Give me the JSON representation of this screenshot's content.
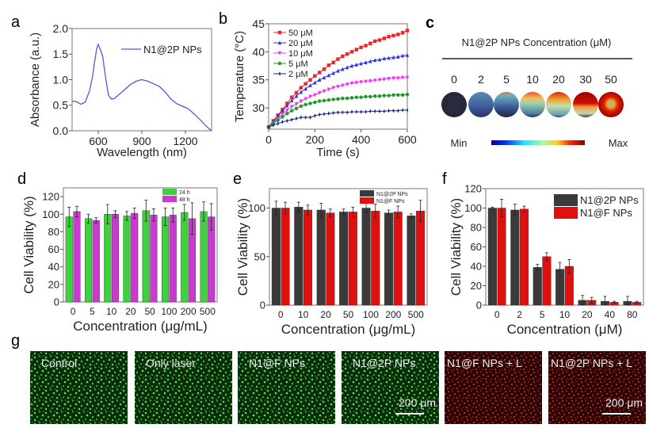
{
  "panel_labels": {
    "a": "a",
    "b": "b",
    "c": "c",
    "d": "d",
    "e": "e",
    "f": "f",
    "g": "g"
  },
  "chart_data": [
    {
      "id": "a",
      "type": "line",
      "title": "",
      "xlabel": "Wavelength (nm)",
      "ylabel": "Absorbance (a.u.)",
      "xlim": [
        420,
        1380
      ],
      "ylim": [
        0,
        2.0
      ],
      "xticks": [
        600,
        900,
        1200
      ],
      "yticks": [
        0.0,
        0.5,
        1.0,
        1.5,
        2.0
      ],
      "ytick_labels": [
        "0.0",
        "0.5",
        "1.0",
        "1.5",
        "2.0"
      ],
      "legend": {
        "position": "top-right",
        "entries": [
          "N1@2P NPs"
        ]
      },
      "series": [
        {
          "name": "N1@2P NPs",
          "color": "#5555dd",
          "x": [
            420,
            450,
            480,
            510,
            540,
            560,
            575,
            590,
            600,
            615,
            630,
            650,
            670,
            690,
            710,
            740,
            780,
            820,
            860,
            900,
            940,
            980,
            1020,
            1060,
            1100,
            1140,
            1180,
            1220,
            1260,
            1300,
            1340,
            1370,
            1380
          ],
          "y": [
            0.58,
            0.57,
            0.52,
            0.56,
            0.78,
            1.05,
            1.35,
            1.62,
            1.69,
            1.58,
            1.46,
            1.05,
            0.7,
            0.62,
            0.63,
            0.7,
            0.8,
            0.9,
            0.97,
            1.0,
            0.97,
            0.92,
            0.87,
            0.76,
            0.62,
            0.53,
            0.48,
            0.43,
            0.33,
            0.22,
            0.1,
            0.02,
            0.01
          ]
        }
      ]
    },
    {
      "id": "b",
      "type": "line",
      "title": "",
      "xlabel": "Time (s)",
      "ylabel": "Temperature (°C)",
      "xlim": [
        0,
        600
      ],
      "ylim": [
        26.2,
        45
      ],
      "xticks": [
        0,
        200,
        400,
        600
      ],
      "yticks": [
        30,
        35,
        40,
        45
      ],
      "legend": {
        "position": "top-left",
        "entries": [
          "50 μM",
          "20 μM",
          "10 μM",
          "5  μM",
          "2  μM"
        ]
      },
      "x": [
        0,
        20,
        40,
        60,
        80,
        100,
        120,
        140,
        160,
        180,
        200,
        220,
        240,
        260,
        280,
        300,
        320,
        340,
        360,
        380,
        400,
        420,
        440,
        460,
        480,
        500,
        520,
        540,
        560,
        580,
        600
      ],
      "series": [
        {
          "name": "50 μM",
          "color": "#e8262b",
          "marker": "square",
          "values": [
            26.6,
            27.7,
            28.7,
            29.7,
            30.8,
            31.9,
            32.7,
            33.6,
            34.3,
            35.0,
            35.7,
            36.3,
            36.9,
            37.6,
            38.1,
            38.7,
            39.2,
            39.6,
            40.0,
            40.4,
            40.8,
            41.1,
            41.5,
            41.9,
            42.1,
            42.4,
            42.7,
            42.9,
            43.1,
            43.4,
            43.8
          ]
        },
        {
          "name": "20 μM",
          "color": "#2a35e0",
          "marker": "triangle",
          "values": [
            26.6,
            27.5,
            28.5,
            29.5,
            30.4,
            31.3,
            32.1,
            32.8,
            33.4,
            34.0,
            34.5,
            35.0,
            35.4,
            35.8,
            36.2,
            36.6,
            36.9,
            37.2,
            37.5,
            37.7,
            37.9,
            38.1,
            38.3,
            38.5,
            38.6,
            38.8,
            38.9,
            39.0,
            39.1,
            39.3,
            39.4
          ]
        },
        {
          "name": "10 μM",
          "color": "#ee33ee",
          "marker": "triangle-down",
          "values": [
            26.6,
            27.3,
            28.1,
            28.9,
            29.6,
            30.2,
            30.7,
            31.2,
            31.6,
            32.0,
            32.3,
            32.7,
            33.0,
            33.3,
            33.6,
            33.8,
            34.0,
            34.2,
            34.4,
            34.5,
            34.6,
            34.7,
            34.8,
            34.9,
            35.0,
            35.1,
            35.2,
            35.3,
            35.3,
            35.4,
            35.4
          ]
        },
        {
          "name": "5  μM",
          "color": "#1a9a2a",
          "marker": "circle",
          "values": [
            26.6,
            27.2,
            27.8,
            28.4,
            29.0,
            29.5,
            29.9,
            30.3,
            30.6,
            30.8,
            31.0,
            31.2,
            31.3,
            31.4,
            31.5,
            31.6,
            31.7,
            31.7,
            31.8,
            31.9,
            31.9,
            32.0,
            32.0,
            32.1,
            32.1,
            32.2,
            32.2,
            32.3,
            32.3,
            32.3,
            32.4
          ]
        },
        {
          "name": "2  μM",
          "color": "#1a2a8a",
          "marker": "star",
          "values": [
            26.6,
            26.9,
            27.2,
            27.5,
            27.7,
            27.9,
            28.1,
            28.3,
            28.3,
            28.3,
            28.6,
            28.8,
            28.9,
            29.0,
            29.1,
            29.2,
            29.2,
            29.2,
            29.3,
            29.3,
            29.3,
            29.3,
            29.4,
            29.4,
            29.4,
            29.4,
            29.5,
            29.5,
            29.5,
            29.6,
            29.6
          ]
        }
      ]
    },
    {
      "id": "d",
      "type": "bar",
      "title": "",
      "xlabel": "Concentration (μg/mL)",
      "ylabel": "Cell Viability (%)",
      "ylim": [
        0,
        130
      ],
      "yticks": [
        0,
        20,
        40,
        60,
        80,
        100,
        120
      ],
      "categories": [
        "0",
        "5",
        "10",
        "20",
        "50",
        "100",
        "200",
        "500"
      ],
      "legend": {
        "position": "top-right"
      },
      "series": [
        {
          "name": "24 h",
          "color": "#3ed03e",
          "values": [
            97,
            95,
            100,
            98,
            104,
            97,
            102,
            103
          ],
          "errors": [
            11,
            5,
            11,
            5,
            12,
            10,
            9,
            11
          ]
        },
        {
          "name": "48 h",
          "color": "#c83ad0",
          "values": [
            103,
            93,
            100,
            101,
            99,
            99,
            95,
            97
          ],
          "errors": [
            6,
            3,
            4,
            6,
            7,
            8,
            18,
            15
          ]
        }
      ]
    },
    {
      "id": "e",
      "type": "bar",
      "title": "",
      "xlabel": "Concentration (μg/mL)",
      "ylabel": "Cell Viability (%)",
      "ylim": [
        0,
        120
      ],
      "yticks": [
        0,
        50,
        100
      ],
      "categories": [
        "0",
        "10",
        "20",
        "50",
        "100",
        "200",
        "500"
      ],
      "legend": {
        "position": "top-right"
      },
      "series": [
        {
          "name": "N1@2P NPs",
          "color": "#3a3a3a",
          "values": [
            100,
            101,
            98,
            96,
            100,
            95,
            92
          ],
          "errors": [
            7,
            5,
            7,
            3,
            5,
            3,
            2
          ]
        },
        {
          "name": "N1@F NPs",
          "color": "#e01010",
          "values": [
            100,
            98,
            95,
            96,
            97,
            96,
            97
          ],
          "errors": [
            6,
            5,
            4,
            5,
            7,
            6,
            11
          ]
        }
      ]
    },
    {
      "id": "f",
      "type": "bar",
      "title": "",
      "xlabel": "Concentration (μM)",
      "ylabel": "Cell Viability (%)",
      "ylim": [
        0,
        120
      ],
      "yticks": [
        0,
        20,
        40,
        60,
        80,
        100,
        120
      ],
      "categories": [
        "0",
        "2",
        "5",
        "10",
        "20",
        "40",
        "80"
      ],
      "legend": {
        "position": "top-right"
      },
      "series": [
        {
          "name": "N1@2P NPs",
          "color": "#3a3a3a",
          "values": [
            100,
            98,
            39,
            37,
            5,
            4,
            4
          ],
          "errors": [
            1,
            6,
            3,
            7,
            5,
            5,
            5
          ]
        },
        {
          "name": "N1@F NPs",
          "color": "#e01010",
          "values": [
            100,
            99,
            50,
            40,
            5,
            3,
            3
          ],
          "errors": [
            9,
            3,
            4,
            7,
            3,
            1,
            1
          ]
        }
      ]
    }
  ],
  "panel_c": {
    "title": "N1@2P NPs Concentration (μM)",
    "concentrations": [
      "0",
      "2",
      "5",
      "10",
      "20",
      "30",
      "50"
    ],
    "colorbar_min": "Min",
    "colorbar_max": "Max"
  },
  "panel_g": {
    "images": [
      {
        "label": "Control",
        "channel": "green"
      },
      {
        "label": "Only laser",
        "channel": "green"
      },
      {
        "label": "N1@F NPs",
        "channel": "green"
      },
      {
        "label": "N1@2P NPs",
        "channel": "green",
        "scalebar": "200 μm"
      },
      {
        "label": "N1@F NPs + L",
        "channel": "red"
      },
      {
        "label": "N1@2P NPs + L",
        "channel": "red",
        "scalebar": "200 μm"
      }
    ]
  }
}
